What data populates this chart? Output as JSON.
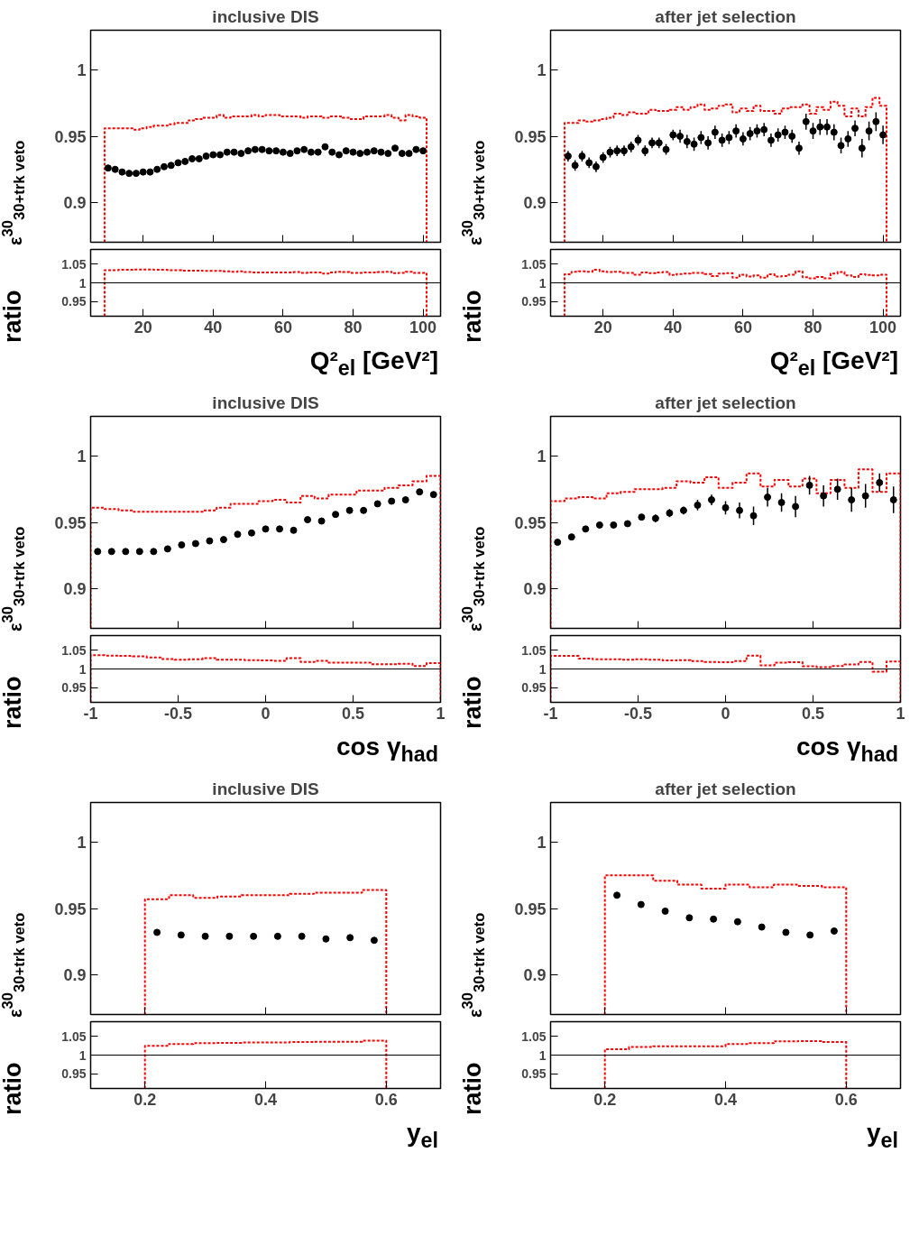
{
  "chart_data": [
    {
      "type": "scatter",
      "title": "inclusive DIS",
      "ylabel": "ε$^{30}$$_{30+trk veto}$",
      "xlim": [
        5,
        105
      ],
      "ylim": [
        0.87,
        1.03
      ],
      "xticks": [
        20,
        40,
        60,
        80,
        100
      ],
      "yticks": [
        0.9,
        0.95,
        1
      ],
      "tick_labels": "y",
      "marker": "circle",
      "series": [
        {
          "type": "histogram",
          "color": "#ff0000",
          "line_style": "dotted",
          "bins": [
            9,
            11,
            13,
            15,
            17,
            19,
            21,
            23,
            25,
            27,
            29,
            31,
            33,
            35,
            37,
            39,
            41,
            43,
            45,
            47,
            49,
            51,
            53,
            55,
            57,
            59,
            61,
            63,
            65,
            67,
            69,
            71,
            73,
            75,
            77,
            79,
            81,
            83,
            85,
            87,
            89,
            91,
            93,
            95,
            97,
            99,
            101
          ],
          "values": [
            0.956,
            0.956,
            0.956,
            0.956,
            0.955,
            0.956,
            0.957,
            0.958,
            0.958,
            0.959,
            0.96,
            0.96,
            0.962,
            0.963,
            0.964,
            0.964,
            0.966,
            0.964,
            0.965,
            0.965,
            0.965,
            0.966,
            0.965,
            0.966,
            0.966,
            0.965,
            0.965,
            0.965,
            0.964,
            0.965,
            0.965,
            0.964,
            0.965,
            0.965,
            0.964,
            0.963,
            0.963,
            0.965,
            0.965,
            0.965,
            0.966,
            0.964,
            0.962,
            0.966,
            0.965,
            0.964
          ]
        },
        {
          "type": "scatter",
          "color": "#000000",
          "x": [
            10,
            12,
            14,
            16,
            18,
            20,
            22,
            24,
            26,
            28,
            30,
            32,
            34,
            36,
            38,
            40,
            42,
            44,
            46,
            48,
            50,
            52,
            54,
            56,
            58,
            60,
            62,
            64,
            66,
            68,
            70,
            72,
            74,
            76,
            78,
            80,
            82,
            84,
            86,
            88,
            90,
            92,
            94,
            96,
            98,
            100
          ],
          "values": [
            0.926,
            0.925,
            0.923,
            0.922,
            0.922,
            0.923,
            0.923,
            0.925,
            0.927,
            0.928,
            0.93,
            0.931,
            0.933,
            0.933,
            0.935,
            0.936,
            0.936,
            0.938,
            0.938,
            0.937,
            0.939,
            0.94,
            0.94,
            0.939,
            0.939,
            0.938,
            0.937,
            0.939,
            0.94,
            0.938,
            0.938,
            0.942,
            0.938,
            0.936,
            0.939,
            0.938,
            0.937,
            0.938,
            0.939,
            0.938,
            0.937,
            0.941,
            0.937,
            0.937,
            0.94,
            0.939
          ]
        }
      ]
    },
    {
      "type": "histogram",
      "xlabel": "Q²$_{el}$ [GeV²]",
      "ylabel": "ratio",
      "xlim": [
        5,
        105
      ],
      "ylim": [
        0.91,
        1.09
      ],
      "xticks": [
        20,
        40,
        60,
        80,
        100
      ],
      "yticks": [
        0.95,
        1,
        1.05
      ],
      "color": "#ff0000",
      "line_style": "dotted",
      "ref_lines": [
        {
          "axis": "y",
          "value": 1,
          "color": "#000000"
        }
      ],
      "bins": [
        9,
        11,
        13,
        15,
        17,
        19,
        21,
        23,
        25,
        27,
        29,
        31,
        33,
        35,
        37,
        39,
        41,
        43,
        45,
        47,
        49,
        51,
        53,
        55,
        57,
        59,
        61,
        63,
        65,
        67,
        69,
        71,
        73,
        75,
        77,
        79,
        81,
        83,
        85,
        87,
        89,
        91,
        93,
        95,
        97,
        99,
        101
      ],
      "values": [
        1.034,
        1.034,
        1.035,
        1.035,
        1.036,
        1.036,
        1.036,
        1.035,
        1.035,
        1.034,
        1.034,
        1.033,
        1.033,
        1.033,
        1.032,
        1.032,
        1.032,
        1.031,
        1.03,
        1.031,
        1.029,
        1.028,
        1.028,
        1.028,
        1.028,
        1.028,
        1.028,
        1.029,
        1.027,
        1.028,
        1.028,
        1.025,
        1.028,
        1.03,
        1.029,
        1.027,
        1.027,
        1.028,
        1.028,
        1.029,
        1.03,
        1.026,
        1.027,
        1.03,
        1.027,
        1.027
      ]
    },
    {
      "type": "scatter",
      "title": "after jet selection",
      "ylabel": "ε$^{30}$$_{30+trk veto}$",
      "xlim": [
        5,
        105
      ],
      "ylim": [
        0.87,
        1.03
      ],
      "xticks": [
        20,
        40,
        60,
        80,
        100
      ],
      "yticks": [
        0.9,
        0.95,
        1
      ],
      "tick_labels": "y",
      "marker": "circle",
      "series": [
        {
          "type": "histogram",
          "color": "#ff0000",
          "line_style": "dotted",
          "bins": [
            9,
            11,
            13,
            15,
            17,
            19,
            21,
            23,
            25,
            27,
            29,
            31,
            33,
            35,
            37,
            39,
            41,
            43,
            45,
            47,
            49,
            51,
            53,
            55,
            57,
            59,
            61,
            63,
            65,
            67,
            69,
            71,
            73,
            75,
            77,
            79,
            81,
            83,
            85,
            87,
            89,
            91,
            93,
            95,
            97,
            99,
            101
          ],
          "values": [
            0.96,
            0.96,
            0.962,
            0.961,
            0.962,
            0.963,
            0.964,
            0.967,
            0.966,
            0.968,
            0.967,
            0.967,
            0.97,
            0.969,
            0.969,
            0.97,
            0.972,
            0.97,
            0.972,
            0.974,
            0.97,
            0.971,
            0.973,
            0.974,
            0.968,
            0.971,
            0.969,
            0.973,
            0.969,
            0.969,
            0.967,
            0.971,
            0.972,
            0.972,
            0.974,
            0.967,
            0.972,
            0.97,
            0.976,
            0.973,
            0.965,
            0.971,
            0.965,
            0.972,
            0.979,
            0.973
          ]
        },
        {
          "type": "scatter",
          "color": "#000000",
          "x": [
            10,
            12,
            14,
            16,
            18,
            20,
            22,
            24,
            26,
            28,
            30,
            32,
            34,
            36,
            38,
            40,
            42,
            44,
            46,
            48,
            50,
            52,
            54,
            56,
            58,
            60,
            62,
            64,
            66,
            68,
            70,
            72,
            74,
            76,
            78,
            80,
            82,
            84,
            86,
            88,
            90,
            92,
            94,
            96,
            98,
            100
          ],
          "values": [
            0.935,
            0.928,
            0.935,
            0.93,
            0.927,
            0.934,
            0.938,
            0.939,
            0.939,
            0.942,
            0.947,
            0.939,
            0.945,
            0.945,
            0.94,
            0.951,
            0.95,
            0.946,
            0.944,
            0.949,
            0.945,
            0.953,
            0.947,
            0.949,
            0.954,
            0.948,
            0.952,
            0.954,
            0.955,
            0.947,
            0.951,
            0.953,
            0.95,
            0.941,
            0.961,
            0.954,
            0.957,
            0.957,
            0.953,
            0.943,
            0.948,
            0.956,
            0.941,
            0.954,
            0.961,
            0.951
          ],
          "errors": [
            0.004,
            0.004,
            0.004,
            0.004,
            0.004,
            0.004,
            0.004,
            0.004,
            0.004,
            0.004,
            0.004,
            0.004,
            0.004,
            0.004,
            0.004,
            0.004,
            0.005,
            0.005,
            0.005,
            0.005,
            0.005,
            0.005,
            0.005,
            0.005,
            0.005,
            0.005,
            0.005,
            0.005,
            0.005,
            0.005,
            0.005,
            0.005,
            0.005,
            0.005,
            0.006,
            0.006,
            0.006,
            0.006,
            0.006,
            0.006,
            0.006,
            0.006,
            0.007,
            0.007,
            0.007,
            0.007
          ]
        }
      ]
    },
    {
      "type": "histogram",
      "xlabel": "Q²$_{el}$ [GeV²]",
      "ylabel": "ratio",
      "xlim": [
        5,
        105
      ],
      "ylim": [
        0.91,
        1.09
      ],
      "xticks": [
        20,
        40,
        60,
        80,
        100
      ],
      "yticks": [
        0.95,
        1,
        1.05
      ],
      "color": "#ff0000",
      "line_style": "dotted",
      "ref_lines": [
        {
          "axis": "y",
          "value": 1,
          "color": "#000000"
        }
      ],
      "bins": [
        9,
        11,
        13,
        15,
        17,
        19,
        21,
        23,
        25,
        27,
        29,
        31,
        33,
        35,
        37,
        39,
        41,
        43,
        45,
        47,
        49,
        51,
        53,
        55,
        57,
        59,
        61,
        63,
        65,
        67,
        69,
        71,
        73,
        75,
        77,
        79,
        81,
        83,
        85,
        87,
        89,
        91,
        93,
        95,
        97,
        99,
        101
      ],
      "values": [
        1.023,
        1.03,
        1.031,
        1.03,
        1.035,
        1.031,
        1.029,
        1.03,
        1.027,
        1.027,
        1.022,
        1.028,
        1.026,
        1.028,
        1.029,
        1.021,
        1.024,
        1.025,
        1.027,
        1.027,
        1.024,
        1.018,
        1.025,
        1.026,
        1.014,
        1.022,
        1.017,
        1.02,
        1.014,
        1.023,
        1.017,
        1.018,
        1.022,
        1.031,
        1.015,
        1.012,
        1.016,
        1.012,
        1.025,
        1.029,
        1.02,
        1.016,
        1.023,
        1.021,
        1.02,
        1.022
      ]
    },
    {
      "type": "scatter",
      "title": "inclusive DIS",
      "ylabel": "ε$^{30}$$_{30+trk veto}$",
      "xlim": [
        -1,
        1
      ],
      "ylim": [
        0.87,
        1.03
      ],
      "xticks": [
        -1,
        -0.5,
        0,
        0.5,
        1
      ],
      "yticks": [
        0.9,
        0.95,
        1
      ],
      "tick_labels": "y",
      "marker": "circle",
      "series": [
        {
          "type": "histogram",
          "color": "#ff0000",
          "line_style": "dotted",
          "bins": [
            -1,
            -0.92,
            -0.84,
            -0.76,
            -0.68,
            -0.6,
            -0.52,
            -0.44,
            -0.36,
            -0.28,
            -0.2,
            -0.12,
            -0.04,
            0.04,
            0.12,
            0.2,
            0.28,
            0.36,
            0.44,
            0.52,
            0.6,
            0.68,
            0.76,
            0.84,
            0.92,
            1
          ],
          "values": [
            0.961,
            0.96,
            0.959,
            0.958,
            0.958,
            0.958,
            0.958,
            0.958,
            0.959,
            0.961,
            0.964,
            0.964,
            0.966,
            0.967,
            0.965,
            0.97,
            0.968,
            0.971,
            0.971,
            0.974,
            0.974,
            0.976,
            0.978,
            0.981,
            0.985
          ]
        },
        {
          "type": "scatter",
          "color": "#000000",
          "x": [
            -0.96,
            -0.88,
            -0.8,
            -0.72,
            -0.64,
            -0.56,
            -0.48,
            -0.4,
            -0.32,
            -0.24,
            -0.16,
            -0.08,
            0,
            0.08,
            0.16,
            0.24,
            0.32,
            0.4,
            0.48,
            0.56,
            0.64,
            0.72,
            0.8,
            0.88,
            0.96
          ],
          "values": [
            0.928,
            0.928,
            0.928,
            0.928,
            0.928,
            0.93,
            0.933,
            0.934,
            0.936,
            0.937,
            0.941,
            0.942,
            0.945,
            0.945,
            0.944,
            0.952,
            0.951,
            0.956,
            0.959,
            0.959,
            0.964,
            0.966,
            0.967,
            0.973,
            0.971
          ],
          "errors": [
            0.001,
            0.001,
            0.001,
            0.001,
            0.001,
            0.001,
            0.001,
            0.001,
            0.001,
            0.001,
            0.001,
            0.001,
            0.002,
            0.002,
            0.002,
            0.002,
            0.002,
            0.002,
            0.002,
            0.002,
            0.002,
            0.002,
            0.002,
            0.002,
            0.002
          ]
        }
      ]
    },
    {
      "type": "histogram",
      "xlabel": "cos γ$_{had}$",
      "ylabel": "ratio",
      "xlim": [
        -1,
        1
      ],
      "ylim": [
        0.91,
        1.09
      ],
      "xticks": [
        -1,
        -0.5,
        0,
        0.5,
        1
      ],
      "yticks": [
        0.95,
        1,
        1.05
      ],
      "color": "#ff0000",
      "line_style": "dotted",
      "ref_lines": [
        {
          "axis": "y",
          "value": 1,
          "color": "#000000"
        }
      ],
      "bins": [
        -1,
        -0.92,
        -0.84,
        -0.76,
        -0.68,
        -0.6,
        -0.52,
        -0.44,
        -0.36,
        -0.28,
        -0.2,
        -0.12,
        -0.04,
        0.04,
        0.12,
        0.2,
        0.28,
        0.36,
        0.44,
        0.52,
        0.6,
        0.68,
        0.76,
        0.84,
        0.92,
        1
      ],
      "values": [
        1.037,
        1.036,
        1.035,
        1.034,
        1.031,
        1.027,
        1.025,
        1.026,
        1.029,
        1.025,
        1.025,
        1.024,
        1.023,
        1.022,
        1.029,
        1.019,
        1.022,
        1.017,
        1.017,
        1.017,
        1.013,
        1.013,
        1.014,
        1.008,
        1.016
      ]
    },
    {
      "type": "scatter",
      "title": "after jet selection",
      "ylabel": "ε$^{30}$$_{30+trk veto}$",
      "xlim": [
        -1,
        1
      ],
      "ylim": [
        0.87,
        1.03
      ],
      "xticks": [
        -1,
        -0.5,
        0,
        0.5,
        1
      ],
      "yticks": [
        0.9,
        0.95,
        1
      ],
      "tick_labels": "y",
      "marker": "circle",
      "series": [
        {
          "type": "histogram",
          "color": "#ff0000",
          "line_style": "dotted",
          "bins": [
            -1,
            -0.92,
            -0.84,
            -0.76,
            -0.68,
            -0.6,
            -0.52,
            -0.44,
            -0.36,
            -0.28,
            -0.2,
            -0.12,
            -0.04,
            0.04,
            0.12,
            0.2,
            0.28,
            0.36,
            0.44,
            0.52,
            0.6,
            0.68,
            0.76,
            0.84,
            0.92,
            1
          ],
          "values": [
            0.966,
            0.968,
            0.969,
            0.968,
            0.972,
            0.973,
            0.975,
            0.975,
            0.976,
            0.981,
            0.98,
            0.984,
            0.976,
            0.98,
            0.987,
            0.977,
            0.982,
            0.977,
            0.983,
            0.972,
            0.982,
            0.976,
            0.99,
            0.973,
            0.987
          ]
        },
        {
          "type": "scatter",
          "color": "#000000",
          "x": [
            -0.96,
            -0.88,
            -0.8,
            -0.72,
            -0.64,
            -0.56,
            -0.48,
            -0.4,
            -0.32,
            -0.24,
            -0.16,
            -0.08,
            0,
            0.08,
            0.16,
            0.24,
            0.32,
            0.4,
            0.48,
            0.56,
            0.64,
            0.72,
            0.8,
            0.88,
            0.96
          ],
          "values": [
            0.935,
            0.939,
            0.945,
            0.948,
            0.948,
            0.949,
            0.954,
            0.953,
            0.957,
            0.959,
            0.963,
            0.967,
            0.961,
            0.959,
            0.955,
            0.969,
            0.965,
            0.962,
            0.978,
            0.97,
            0.975,
            0.967,
            0.97,
            0.98,
            0.967
          ],
          "errors": [
            0.001,
            0.001,
            0.001,
            0.001,
            0.002,
            0.002,
            0.002,
            0.003,
            0.003,
            0.003,
            0.004,
            0.004,
            0.005,
            0.006,
            0.007,
            0.007,
            0.007,
            0.008,
            0.007,
            0.008,
            0.008,
            0.009,
            0.009,
            0.007,
            0.01
          ]
        }
      ]
    },
    {
      "type": "histogram",
      "xlabel": "cos γ$_{had}$",
      "ylabel": "ratio",
      "xlim": [
        -1,
        1
      ],
      "ylim": [
        0.91,
        1.09
      ],
      "xticks": [
        -1,
        -0.5,
        0,
        0.5,
        1
      ],
      "yticks": [
        0.95,
        1,
        1.05
      ],
      "color": "#ff0000",
      "line_style": "dotted",
      "ref_lines": [
        {
          "axis": "y",
          "value": 1,
          "color": "#000000"
        }
      ],
      "bins": [
        -1,
        -0.92,
        -0.84,
        -0.76,
        -0.68,
        -0.6,
        -0.52,
        -0.44,
        -0.36,
        -0.28,
        -0.2,
        -0.12,
        -0.04,
        0.04,
        0.12,
        0.2,
        0.28,
        0.36,
        0.44,
        0.52,
        0.6,
        0.68,
        0.76,
        0.84,
        0.92,
        1
      ],
      "values": [
        1.035,
        1.035,
        1.028,
        1.026,
        1.026,
        1.025,
        1.026,
        1.025,
        1.023,
        1.024,
        1.021,
        1.019,
        1.018,
        1.021,
        1.036,
        1.01,
        1.017,
        1.018,
        1.007,
        1.005,
        1.008,
        1.012,
        1.019,
        0.993,
        1.02
      ]
    },
    {
      "type": "scatter",
      "title": "inclusive DIS",
      "ylabel": "ε$^{30}$$_{30+trk veto}$",
      "xlim": [
        0.11,
        0.69
      ],
      "ylim": [
        0.87,
        1.03
      ],
      "xticks": [
        0.2,
        0.4,
        0.6
      ],
      "yticks": [
        0.9,
        0.95,
        1
      ],
      "tick_labels": "y",
      "marker": "circle",
      "series": [
        {
          "type": "histogram",
          "color": "#ff0000",
          "line_style": "dotted",
          "bins": [
            0.2,
            0.24,
            0.28,
            0.32,
            0.36,
            0.4,
            0.44,
            0.48,
            0.52,
            0.56,
            0.6
          ],
          "values": [
            0.957,
            0.96,
            0.958,
            0.959,
            0.96,
            0.96,
            0.961,
            0.962,
            0.962,
            0.964
          ]
        },
        {
          "type": "scatter",
          "color": "#000000",
          "x": [
            0.22,
            0.26,
            0.3,
            0.34,
            0.38,
            0.42,
            0.46,
            0.5,
            0.54,
            0.58
          ],
          "values": [
            0.932,
            0.93,
            0.929,
            0.929,
            0.929,
            0.929,
            0.929,
            0.927,
            0.928,
            0.926
          ]
        }
      ]
    },
    {
      "type": "histogram",
      "xlabel": "y$_{el}$",
      "ylabel": "ratio",
      "xlim": [
        0.11,
        0.69
      ],
      "ylim": [
        0.91,
        1.09
      ],
      "xticks": [
        0.2,
        0.4,
        0.6
      ],
      "yticks": [
        0.95,
        1,
        1.05
      ],
      "color": "#ff0000",
      "line_style": "dotted",
      "ref_lines": [
        {
          "axis": "y",
          "value": 1,
          "color": "#000000"
        }
      ],
      "bins": [
        0.2,
        0.24,
        0.28,
        0.32,
        0.36,
        0.4,
        0.44,
        0.48,
        0.52,
        0.56,
        0.6
      ],
      "values": [
        1.025,
        1.03,
        1.032,
        1.033,
        1.034,
        1.034,
        1.035,
        1.036,
        1.036,
        1.039
      ]
    },
    {
      "type": "scatter",
      "title": "after jet selection",
      "ylabel": "ε$^{30}$$_{30+trk veto}$",
      "xlim": [
        0.11,
        0.69
      ],
      "ylim": [
        0.87,
        1.03
      ],
      "xticks": [
        0.2,
        0.4,
        0.6
      ],
      "yticks": [
        0.9,
        0.95,
        1
      ],
      "tick_labels": "y",
      "marker": "circle",
      "series": [
        {
          "type": "histogram",
          "color": "#ff0000",
          "line_style": "dotted",
          "bins": [
            0.2,
            0.24,
            0.28,
            0.32,
            0.36,
            0.4,
            0.44,
            0.48,
            0.52,
            0.56,
            0.6
          ],
          "values": [
            0.975,
            0.975,
            0.971,
            0.968,
            0.965,
            0.968,
            0.966,
            0.968,
            0.967,
            0.966
          ]
        },
        {
          "type": "scatter",
          "color": "#000000",
          "x": [
            0.22,
            0.26,
            0.3,
            0.34,
            0.38,
            0.42,
            0.46,
            0.5,
            0.54,
            0.58
          ],
          "values": [
            0.96,
            0.953,
            0.948,
            0.943,
            0.942,
            0.94,
            0.936,
            0.932,
            0.93,
            0.933
          ],
          "errors": [
            0.001,
            0.001,
            0.001,
            0.001,
            0.002,
            0.002,
            0.002,
            0.002,
            0.002,
            0.002
          ]
        }
      ]
    },
    {
      "type": "histogram",
      "xlabel": "y$_{el}$",
      "ylabel": "ratio",
      "xlim": [
        0.11,
        0.69
      ],
      "ylim": [
        0.91,
        1.09
      ],
      "xticks": [
        0.2,
        0.4,
        0.6
      ],
      "yticks": [
        0.95,
        1,
        1.05
      ],
      "color": "#ff0000",
      "line_style": "dotted",
      "ref_lines": [
        {
          "axis": "y",
          "value": 1,
          "color": "#000000"
        }
      ],
      "bins": [
        0.2,
        0.24,
        0.28,
        0.32,
        0.36,
        0.4,
        0.44,
        0.48,
        0.52,
        0.56,
        0.6
      ],
      "values": [
        1.016,
        1.022,
        1.024,
        1.024,
        1.024,
        1.03,
        1.032,
        1.037,
        1.038,
        1.035
      ]
    }
  ]
}
